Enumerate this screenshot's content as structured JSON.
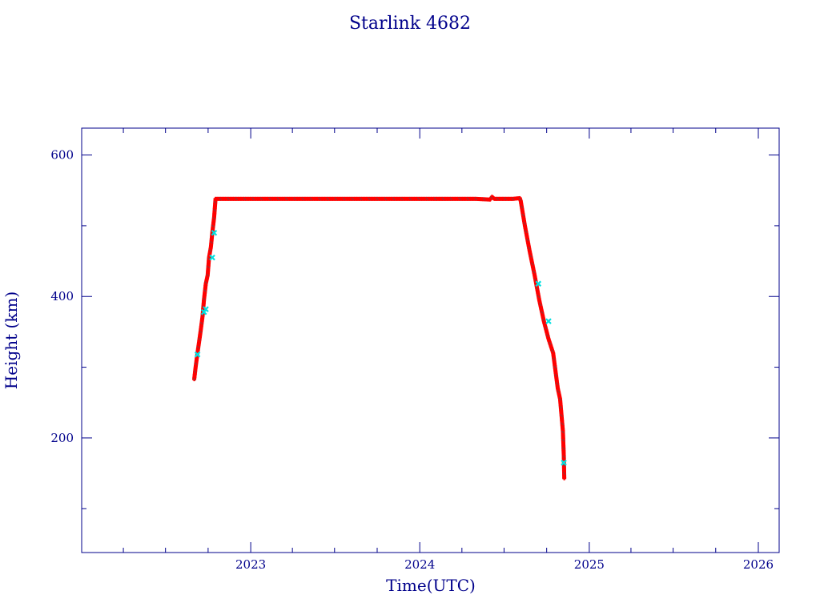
{
  "chart_data": {
    "type": "scatter",
    "title": "Starlink 4682",
    "xlabel": "Time(UTC)",
    "ylabel": "Height (km)",
    "xlim": [
      "2022-01-01",
      "2026-02-15"
    ],
    "ylim": [
      38,
      638
    ],
    "x_ticks": [
      "2023",
      "2024",
      "2025",
      "2026"
    ],
    "x_minor_ticks": [
      "2022-04-01",
      "2022-07-01",
      "2022-10-01",
      "2023-04-01",
      "2023-07-01",
      "2023-10-01",
      "2024-04-01",
      "2024-07-01",
      "2024-10-01",
      "2025-04-01",
      "2025-07-01",
      "2025-10-01"
    ],
    "y_ticks": [
      200,
      400,
      600
    ],
    "y_minor_ticks": [
      100,
      300,
      500
    ],
    "grid": false,
    "legend": "none",
    "colors": {
      "primary": "#ff0000",
      "secondary": "#00e0e0",
      "mark_outline": "#555555",
      "axes": "#00008b"
    },
    "series": [
      {
        "color": "#ff0000",
        "x": [
          "2022-09-01",
          "2022-09-04",
          "2022-09-08",
          "2022-09-12",
          "2022-09-15",
          "2022-09-19",
          "2022-09-22",
          "2022-09-26",
          "2022-09-30",
          "2022-10-03",
          "2022-10-07",
          "2022-10-10",
          "2022-10-14",
          "2022-10-17",
          "2022-11-01",
          "2022-12-01",
          "2023-01-01",
          "2023-02-01",
          "2023-03-01",
          "2023-04-01",
          "2023-05-01",
          "2023-06-01",
          "2023-07-01",
          "2023-08-01",
          "2023-09-01",
          "2023-10-01",
          "2023-11-01",
          "2023-12-01",
          "2024-01-01",
          "2024-02-01",
          "2024-03-01",
          "2024-04-01",
          "2024-05-01",
          "2024-06-01",
          "2024-06-05",
          "2024-06-10",
          "2024-07-01",
          "2024-07-20",
          "2024-08-04",
          "2024-08-06",
          "2024-08-15",
          "2024-08-25",
          "2024-09-05",
          "2024-09-15",
          "2024-09-25",
          "2024-10-05",
          "2024-10-15",
          "2024-10-20",
          "2024-10-25",
          "2024-10-30",
          "2024-11-03",
          "2024-11-05",
          "2024-11-07",
          "2024-11-08"
        ],
        "y": [
          283,
          300,
          320,
          338,
          352,
          372,
          395,
          418,
          430,
          455,
          470,
          490,
          512,
          538,
          538,
          538,
          538,
          538,
          538,
          538,
          538,
          538,
          538,
          538,
          538,
          538,
          538,
          538,
          538,
          538,
          538,
          538,
          538,
          537,
          541,
          538,
          538,
          538,
          539,
          535,
          500,
          465,
          430,
          395,
          365,
          340,
          320,
          295,
          270,
          255,
          225,
          210,
          175,
          143
        ]
      },
      {
        "color": "#00e0e0",
        "x": [
          "2022-09-08",
          "2022-09-22",
          "2022-09-26",
          "2022-10-10",
          "2022-10-14",
          "2024-09-13",
          "2024-10-05",
          "2024-11-07"
        ],
        "y": [
          318,
          378,
          382,
          455,
          490,
          418,
          365,
          165
        ]
      }
    ]
  }
}
